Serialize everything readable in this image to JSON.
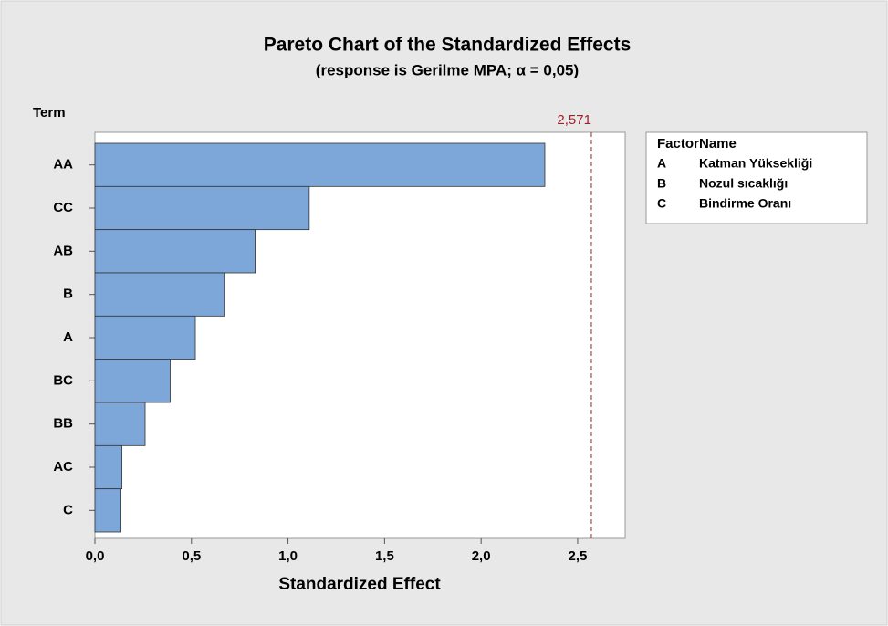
{
  "chart_data": {
    "type": "bar",
    "orientation": "horizontal",
    "title": "Pareto Chart of the Standardized Effects",
    "subtitle": "(response is Gerilme MPA; α = 0,05)",
    "y_label": "Term",
    "x_label": "Standardized Effect",
    "categories": [
      "AA",
      "CC",
      "AB",
      "B",
      "A",
      "BC",
      "BB",
      "AC",
      "C"
    ],
    "values": [
      2.33,
      1.11,
      0.83,
      0.67,
      0.52,
      0.39,
      0.26,
      0.14,
      0.135
    ],
    "color": "#7da7d9",
    "xlim": [
      0,
      2.746
    ],
    "xticks": [
      {
        "value": 0,
        "label": "0,0"
      },
      {
        "value": 0.5,
        "label": "0,5"
      },
      {
        "value": 1,
        "label": "1,0"
      },
      {
        "value": 1.5,
        "label": "1,5"
      },
      {
        "value": 2,
        "label": "2,0"
      },
      {
        "value": 2.5,
        "label": "2,5"
      }
    ],
    "reference_line": {
      "value": 2.571,
      "label": "2,571",
      "color": "#a0202a"
    },
    "factor_table": {
      "headers": [
        "Factor",
        "Name"
      ],
      "rows": [
        [
          "A",
          "Katman Yüksekliği"
        ],
        [
          "B",
          "Nozul sıcaklığı"
        ],
        [
          "C",
          "Bindirme Oranı"
        ]
      ]
    }
  }
}
